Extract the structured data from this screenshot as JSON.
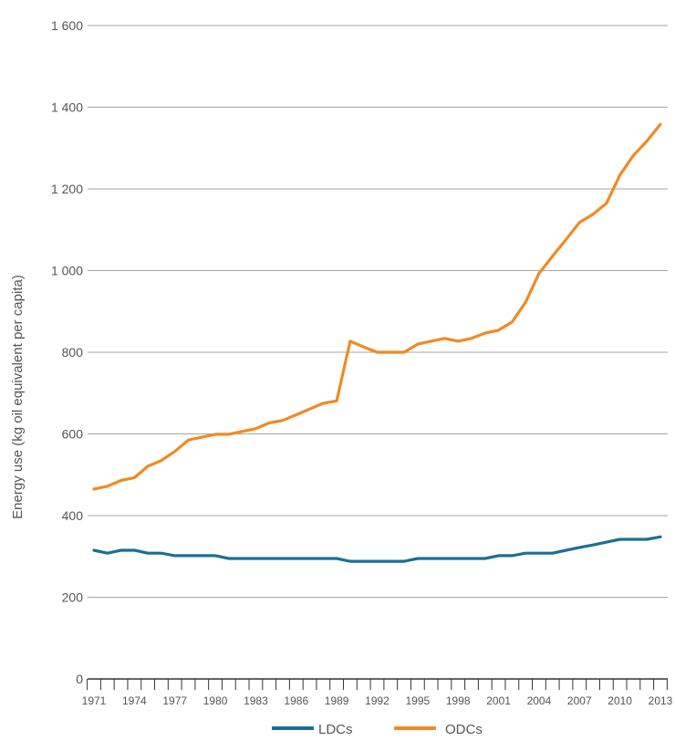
{
  "chart_data": {
    "type": "line",
    "title": "",
    "xlabel": "",
    "ylabel": "Energy use (kg oil equivalent per capita)",
    "ylim": [
      0,
      1600
    ],
    "y_ticks": [
      "0",
      "200",
      "400",
      "600",
      "800",
      "1 000",
      "1 200",
      "1 400",
      "1 600"
    ],
    "x_tick_labels": [
      "1971",
      "1974",
      "1977",
      "1980",
      "1983",
      "1986",
      "1989",
      "1992",
      "1995",
      "1998",
      "2001",
      "2004",
      "2007",
      "2010",
      "2013"
    ],
    "x": [
      1971,
      1972,
      1973,
      1974,
      1975,
      1976,
      1977,
      1978,
      1979,
      1980,
      1981,
      1982,
      1983,
      1984,
      1985,
      1986,
      1987,
      1988,
      1989,
      1990,
      1991,
      1992,
      1993,
      1994,
      1995,
      1996,
      1997,
      1998,
      1999,
      2000,
      2001,
      2002,
      2003,
      2004,
      2005,
      2006,
      2007,
      2008,
      2009,
      2010,
      2011,
      2012,
      2013
    ],
    "grid": "horizontal",
    "legend_position": "bottom",
    "series": [
      {
        "name": "LDCs",
        "color": "#1b6f96",
        "values": [
          315,
          308,
          315,
          315,
          308,
          308,
          302,
          302,
          302,
          302,
          295,
          295,
          295,
          295,
          295,
          295,
          295,
          295,
          295,
          288,
          288,
          288,
          288,
          288,
          295,
          295,
          295,
          295,
          295,
          295,
          302,
          302,
          308,
          308,
          308,
          315,
          322,
          328,
          335,
          342,
          342,
          342,
          348
        ]
      },
      {
        "name": "ODCs",
        "color": "#f08a24",
        "values": [
          465,
          472,
          486,
          493,
          521,
          535,
          557,
          585,
          592,
          599,
          599,
          606,
          613,
          627,
          633,
          647,
          661,
          675,
          681,
          827,
          813,
          800,
          800,
          800,
          820,
          827,
          834,
          827,
          834,
          847,
          854,
          874,
          922,
          993,
          1035,
          1076,
          1118,
          1138,
          1165,
          1234,
          1282,
          1317,
          1358
        ]
      }
    ]
  }
}
